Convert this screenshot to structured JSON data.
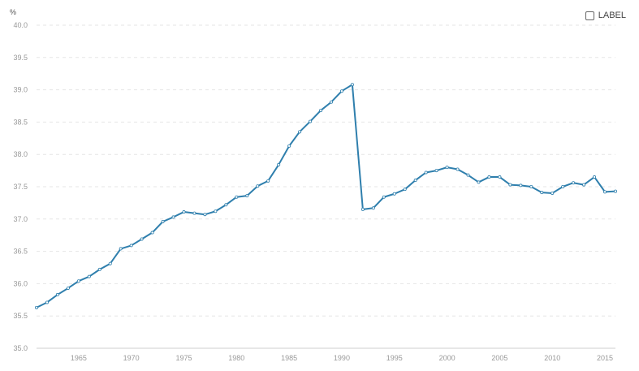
{
  "legend": {
    "label": "LABEL",
    "checked": false
  },
  "colors": {
    "line": "#2f7fad",
    "grid": "#e6e6e6",
    "tick_text": "#999999"
  },
  "chart_data": {
    "type": "line",
    "unit": "%",
    "xlabel": "",
    "ylabel": "",
    "xlim": [
      1961,
      2016
    ],
    "ylim": [
      35.0,
      40.0
    ],
    "y_ticks": [
      "35.0",
      "35.5",
      "36.0",
      "36.5",
      "37.0",
      "37.5",
      "38.0",
      "38.5",
      "39.0",
      "39.5",
      "40.0"
    ],
    "x_ticks": [
      "1965",
      "1970",
      "1975",
      "1980",
      "1985",
      "1990",
      "1995",
      "2000",
      "2005",
      "2010",
      "2015"
    ],
    "grid": true,
    "series": [
      {
        "x": [
          1961,
          1962,
          1963,
          1964,
          1965,
          1966,
          1967,
          1968,
          1969,
          1970,
          1971,
          1972,
          1973,
          1974,
          1975,
          1976,
          1977,
          1978,
          1979,
          1980,
          1981,
          1982,
          1983,
          1984,
          1985,
          1986,
          1987,
          1988,
          1989,
          1990,
          1991,
          1992,
          1993,
          1994,
          1995,
          1996,
          1997,
          1998,
          1999,
          2000,
          2001,
          2002,
          2003,
          2004,
          2005,
          2006,
          2007,
          2008,
          2009,
          2010,
          2011,
          2012,
          2013,
          2014,
          2015,
          2016
        ],
        "y": [
          35.63,
          35.71,
          35.83,
          35.93,
          36.04,
          36.11,
          36.22,
          36.31,
          36.54,
          36.59,
          36.69,
          36.79,
          36.96,
          37.03,
          37.11,
          37.09,
          37.07,
          37.12,
          37.22,
          37.34,
          37.36,
          37.51,
          37.59,
          37.84,
          38.13,
          38.35,
          38.51,
          38.68,
          38.81,
          38.98,
          39.08,
          37.15,
          37.17,
          37.34,
          37.39,
          37.46,
          37.6,
          37.72,
          37.75,
          37.8,
          37.77,
          37.68,
          37.57,
          37.65,
          37.65,
          37.53,
          37.52,
          37.5,
          37.41,
          37.4,
          37.5,
          37.56,
          37.53,
          37.65,
          37.42,
          37.43
        ]
      }
    ]
  }
}
